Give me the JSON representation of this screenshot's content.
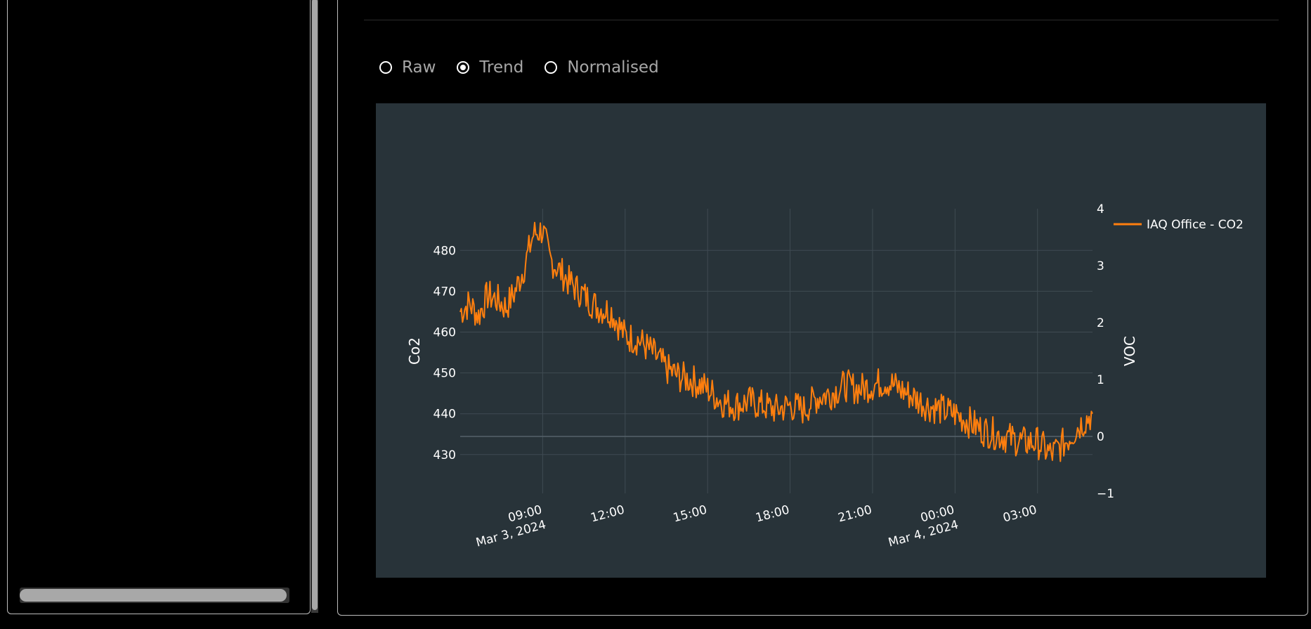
{
  "view_options": {
    "items": [
      {
        "label": "Raw",
        "checked": false
      },
      {
        "label": "Trend",
        "checked": true
      },
      {
        "label": "Normalised",
        "checked": false
      }
    ]
  },
  "chart_data": {
    "type": "line",
    "series": [
      {
        "name": "IAQ Office - CO2",
        "color": "#ff7f0e",
        "axis": "y",
        "points": [
          [
            "2024-03-03 06:00",
            465
          ],
          [
            "2024-03-03 06:20",
            467
          ],
          [
            "2024-03-03 06:40",
            464
          ],
          [
            "2024-03-03 07:00",
            469
          ],
          [
            "2024-03-03 07:20",
            468
          ],
          [
            "2024-03-03 07:40",
            466
          ],
          [
            "2024-03-03 08:00",
            470
          ],
          [
            "2024-03-03 08:20",
            476
          ],
          [
            "2024-03-03 08:40",
            484
          ],
          [
            "2024-03-03 09:00",
            485
          ],
          [
            "2024-03-03 09:15",
            478
          ],
          [
            "2024-03-03 09:30",
            476
          ],
          [
            "2024-03-03 10:00",
            472
          ],
          [
            "2024-03-03 10:30",
            469
          ],
          [
            "2024-03-03 11:00",
            466
          ],
          [
            "2024-03-03 11:30",
            465
          ],
          [
            "2024-03-03 12:00",
            459
          ],
          [
            "2024-03-03 12:30",
            458
          ],
          [
            "2024-03-03 13:00",
            455
          ],
          [
            "2024-03-03 13:30",
            451
          ],
          [
            "2024-03-03 14:00",
            449
          ],
          [
            "2024-03-03 14:30",
            448
          ],
          [
            "2024-03-03 15:00",
            446
          ],
          [
            "2024-03-03 15:30",
            443
          ],
          [
            "2024-03-03 16:00",
            442
          ],
          [
            "2024-03-03 16:30",
            443
          ],
          [
            "2024-03-03 17:00",
            442
          ],
          [
            "2024-03-03 17:30",
            441
          ],
          [
            "2024-03-03 18:00",
            442
          ],
          [
            "2024-03-03 18:30",
            441
          ],
          [
            "2024-03-03 19:00",
            444
          ],
          [
            "2024-03-03 19:30",
            445
          ],
          [
            "2024-03-03 20:00",
            447
          ],
          [
            "2024-03-03 20:30",
            446
          ],
          [
            "2024-03-03 21:00",
            447
          ],
          [
            "2024-03-03 21:30",
            448
          ],
          [
            "2024-03-03 22:00",
            446
          ],
          [
            "2024-03-03 22:30",
            444
          ],
          [
            "2024-03-03 23:00",
            442
          ],
          [
            "2024-03-03 23:30",
            441
          ],
          [
            "2024-03-04 00:00",
            440
          ],
          [
            "2024-03-04 00:30",
            438
          ],
          [
            "2024-03-04 01:00",
            436
          ],
          [
            "2024-03-04 01:30",
            435
          ],
          [
            "2024-03-04 02:00",
            434
          ],
          [
            "2024-03-04 02:30",
            433
          ],
          [
            "2024-03-04 03:00",
            433
          ],
          [
            "2024-03-04 03:30",
            430
          ],
          [
            "2024-03-04 04:00",
            433
          ],
          [
            "2024-03-04 04:30",
            437
          ],
          [
            "2024-03-04 05:00",
            440
          ]
        ]
      }
    ],
    "xaxis": {
      "type": "date",
      "range": [
        "2024-03-03 06:00",
        "2024-03-04 05:00"
      ],
      "ticks": [
        {
          "value": "2024-03-03 09:00",
          "line1": "09:00",
          "line2": "Mar 3, 2024"
        },
        {
          "value": "2024-03-03 12:00",
          "line1": "12:00",
          "line2": ""
        },
        {
          "value": "2024-03-03 15:00",
          "line1": "15:00",
          "line2": ""
        },
        {
          "value": "2024-03-03 18:00",
          "line1": "18:00",
          "line2": ""
        },
        {
          "value": "2024-03-03 21:00",
          "line1": "21:00",
          "line2": ""
        },
        {
          "value": "2024-03-04 00:00",
          "line1": "00:00",
          "line2": "Mar 4, 2024"
        },
        {
          "value": "2024-03-04 03:00",
          "line1": "03:00",
          "line2": ""
        }
      ],
      "tick_angle": -15,
      "grid": true
    },
    "yaxis": {
      "label": "Co2",
      "range": [
        420.5,
        490.2
      ],
      "ticks": [
        430,
        440,
        450,
        460,
        470,
        480
      ],
      "grid": true
    },
    "yaxis2": {
      "label": "VOC",
      "range": [
        -1,
        4
      ],
      "ticks": [
        "−1",
        "0",
        "1",
        "2",
        "3",
        "4"
      ],
      "zero_line": true
    },
    "legend": {
      "placement": "top-right"
    },
    "background": "#283339",
    "noise": 4
  }
}
